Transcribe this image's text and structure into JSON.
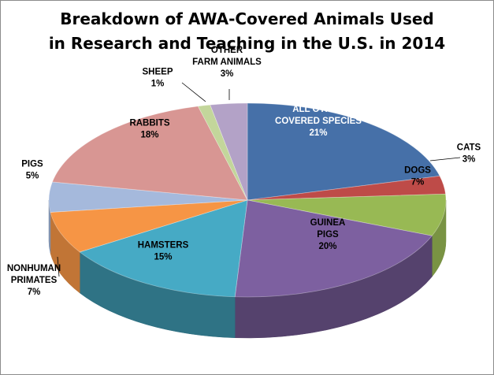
{
  "chart_data": {
    "type": "pie",
    "title_lines": [
      "Breakdown of AWA-Covered Animals Used",
      "in Research and Teaching in the U.S. in 2014"
    ],
    "three_d": true,
    "slices": [
      {
        "label_lines": [
          "ALL OTHER",
          "COVERED SPECIES"
        ],
        "pct_label": "21%",
        "value": 21,
        "color": "#4670a8",
        "label_color": "#ffffff"
      },
      {
        "label_lines": [
          "CATS"
        ],
        "pct_label": "3%",
        "value": 3,
        "color": "#be4b48",
        "label_color": "#000000"
      },
      {
        "label_lines": [
          "DOGS"
        ],
        "pct_label": "7%",
        "value": 7,
        "color": "#98b954",
        "label_color": "#000000"
      },
      {
        "label_lines": [
          "GUINEA",
          "PIGS"
        ],
        "pct_label": "20%",
        "value": 20,
        "color": "#7d60a0",
        "label_color": "#000000"
      },
      {
        "label_lines": [
          "HAMSTERS"
        ],
        "pct_label": "15%",
        "value": 15,
        "color": "#46aac5",
        "label_color": "#000000"
      },
      {
        "label_lines": [
          "NONHUMAN",
          "PRIMATES"
        ],
        "pct_label": "7%",
        "value": 7,
        "color": "#f69545",
        "label_color": "#000000"
      },
      {
        "label_lines": [
          "PIGS"
        ],
        "pct_label": "5%",
        "value": 5,
        "color": "#a5b9dc",
        "label_color": "#000000"
      },
      {
        "label_lines": [
          "RABBITS"
        ],
        "pct_label": "18%",
        "value": 18,
        "color": "#d89693",
        "label_color": "#000000"
      },
      {
        "label_lines": [
          "SHEEP"
        ],
        "pct_label": "1%",
        "value": 1,
        "color": "#c3d69b",
        "label_color": "#000000"
      },
      {
        "label_lines": [
          "OTHER",
          "FARM ANIMALS"
        ],
        "pct_label": "3%",
        "value": 3,
        "color": "#b3a2c7",
        "label_color": "#000000"
      }
    ]
  }
}
